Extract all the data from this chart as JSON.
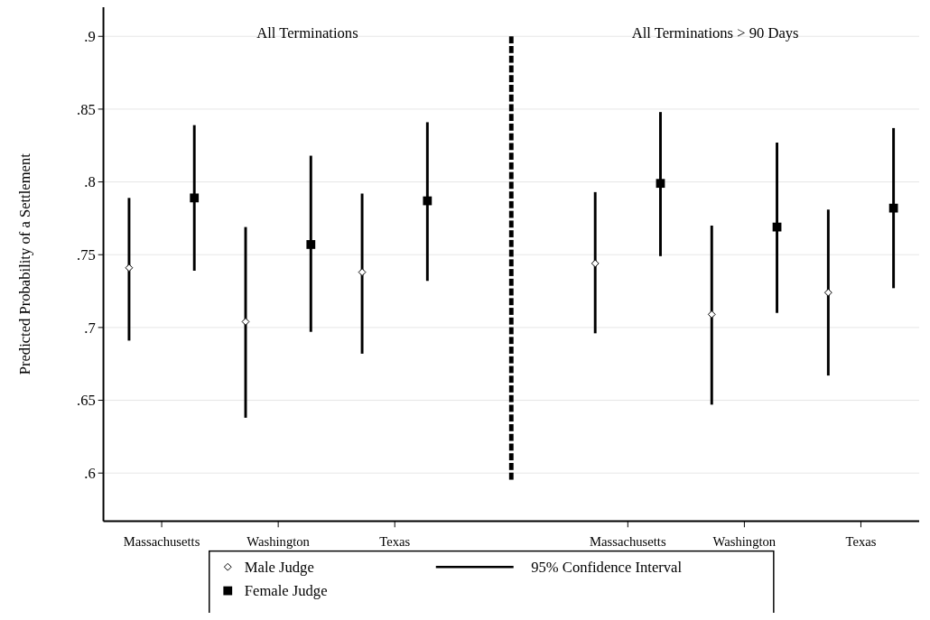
{
  "chart_data": {
    "type": "scatter",
    "ylabel": "Predicted Probability of a Settlement",
    "categories": [
      "Massachusetts",
      "Washington",
      "Texas",
      null,
      "Massachusetts",
      "Washington",
      "Texas"
    ],
    "ylim": [
      0.567,
      0.92
    ],
    "yticks": [
      {
        "value": 0.6,
        "label": ".6"
      },
      {
        "value": 0.65,
        "label": ".65"
      },
      {
        "value": 0.7,
        "label": ".7"
      },
      {
        "value": 0.75,
        "label": ".75"
      },
      {
        "value": 0.8,
        "label": ".8"
      },
      {
        "value": 0.85,
        "label": ".85"
      },
      {
        "value": 0.9,
        "label": ".9"
      }
    ],
    "grid": "y",
    "legend": "bottom",
    "series": [
      {
        "name": "Male Judge",
        "color": "#000000",
        "marker": "diamond",
        "values": [
          0.741,
          0.704,
          0.738,
          null,
          0.744,
          0.709,
          0.724
        ],
        "errors": [
          [
            0.691,
            0.789
          ],
          [
            0.638,
            0.769
          ],
          [
            0.682,
            0.792
          ],
          null,
          [
            0.696,
            0.793
          ],
          [
            0.647,
            0.77
          ],
          [
            0.667,
            0.781
          ]
        ]
      },
      {
        "name": "Female Judge",
        "color": "#000000",
        "marker": "square",
        "values": [
          0.789,
          0.757,
          0.787,
          null,
          0.799,
          0.769,
          0.782
        ],
        "errors": [
          [
            0.739,
            0.839
          ],
          [
            0.697,
            0.818
          ],
          [
            0.732,
            0.841
          ],
          null,
          [
            0.749,
            0.848
          ],
          [
            0.71,
            0.827
          ],
          [
            0.727,
            0.837
          ]
        ]
      }
    ],
    "annotations": [
      "All Terminations",
      "All Terminations > 90 Days",
      "95% Confidence Interval"
    ]
  }
}
